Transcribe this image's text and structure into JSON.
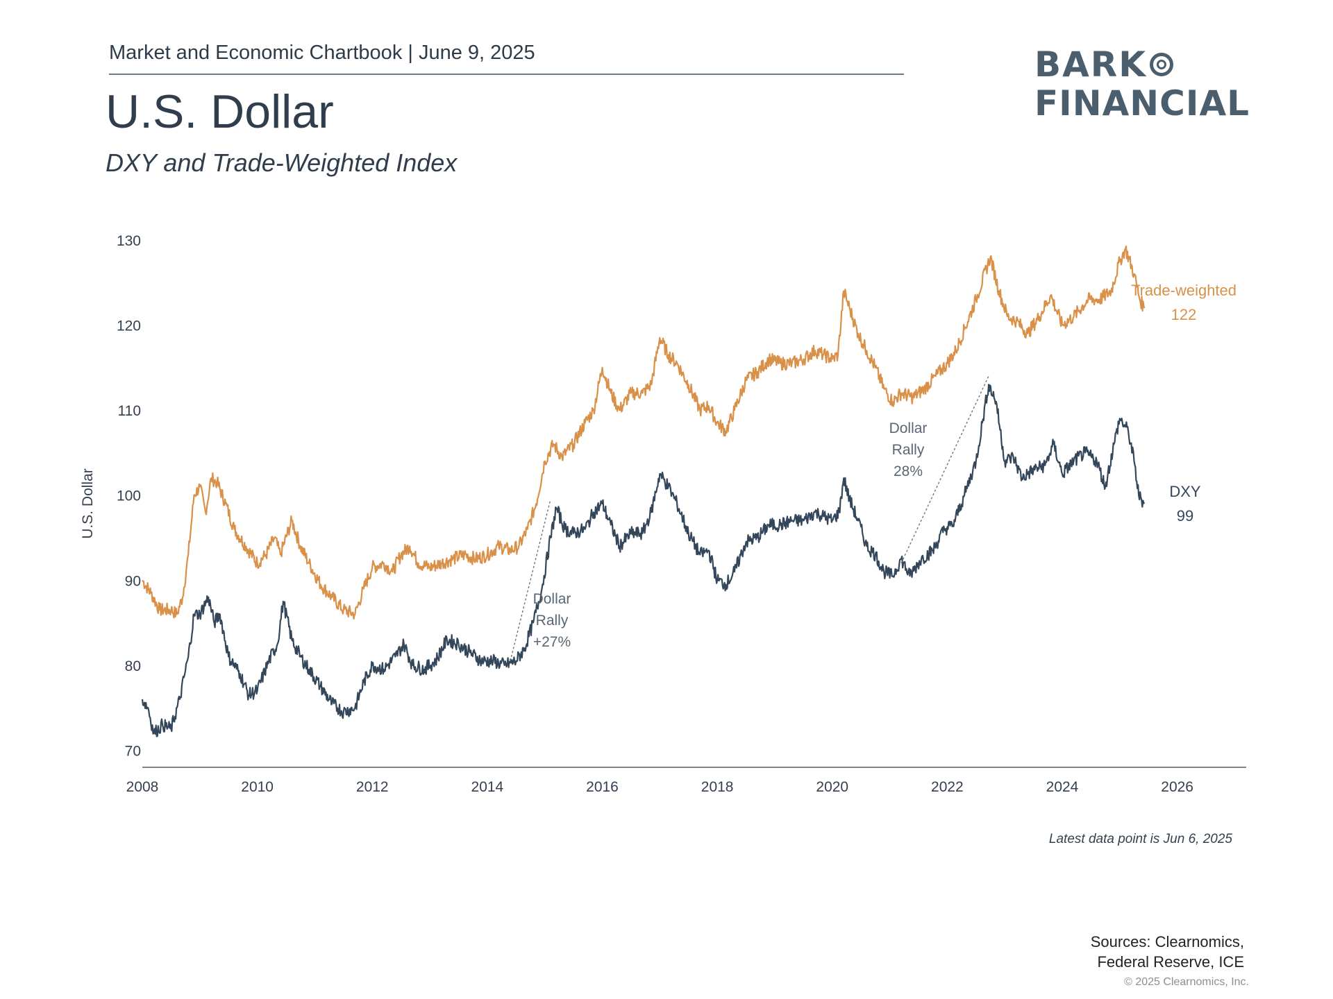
{
  "header": {
    "chartbook_line": "Market and Economic Chartbook | June 9, 2025",
    "title": "U.S. Dollar",
    "subtitle": "DXY and Trade-Weighted Index"
  },
  "logo": {
    "line1": "BARK",
    "line2": "FINANCIAL",
    "color": "#4a5e6e"
  },
  "chart_data": {
    "type": "line",
    "ylabel": "U.S. Dollar",
    "xlabel": "",
    "xlim": [
      2008,
      2027.2
    ],
    "ylim": [
      68,
      130
    ],
    "y_ticks": [
      70,
      80,
      90,
      100,
      110,
      120,
      130
    ],
    "x_ticks": [
      2008,
      2010,
      2012,
      2014,
      2016,
      2018,
      2020,
      2022,
      2024,
      2026
    ],
    "grid": false,
    "series": [
      {
        "name": "Trade-weighted",
        "end_label": "122",
        "color": "#d9914a",
        "points": [
          [
            2008.0,
            90
          ],
          [
            2008.15,
            88.5
          ],
          [
            2008.3,
            86.5
          ],
          [
            2008.5,
            86.5
          ],
          [
            2008.6,
            86
          ],
          [
            2008.7,
            88
          ],
          [
            2008.8,
            93
          ],
          [
            2008.9,
            100
          ],
          [
            2009.0,
            101
          ],
          [
            2009.1,
            98
          ],
          [
            2009.2,
            102
          ],
          [
            2009.3,
            101.5
          ],
          [
            2009.45,
            99
          ],
          [
            2009.6,
            96
          ],
          [
            2009.8,
            94
          ],
          [
            2010.0,
            92
          ],
          [
            2010.15,
            93
          ],
          [
            2010.3,
            95
          ],
          [
            2010.4,
            93
          ],
          [
            2010.6,
            97
          ],
          [
            2010.75,
            94
          ],
          [
            2010.9,
            92
          ],
          [
            2011.1,
            89.5
          ],
          [
            2011.3,
            88
          ],
          [
            2011.5,
            86.5
          ],
          [
            2011.7,
            86
          ],
          [
            2011.85,
            89
          ],
          [
            2012.0,
            91.5
          ],
          [
            2012.2,
            92
          ],
          [
            2012.35,
            91
          ],
          [
            2012.5,
            93
          ],
          [
            2012.65,
            94
          ],
          [
            2012.8,
            92
          ],
          [
            2013.0,
            91.5
          ],
          [
            2013.2,
            92
          ],
          [
            2013.4,
            92.5
          ],
          [
            2013.6,
            93
          ],
          [
            2013.8,
            92.5
          ],
          [
            2014.0,
            93
          ],
          [
            2014.2,
            94
          ],
          [
            2014.4,
            93.5
          ],
          [
            2014.55,
            94
          ],
          [
            2014.7,
            96
          ],
          [
            2014.85,
            99
          ],
          [
            2015.0,
            104
          ],
          [
            2015.15,
            106
          ],
          [
            2015.3,
            104.5
          ],
          [
            2015.5,
            106
          ],
          [
            2015.7,
            108.5
          ],
          [
            2015.85,
            110
          ],
          [
            2016.0,
            115
          ],
          [
            2016.15,
            112
          ],
          [
            2016.3,
            110
          ],
          [
            2016.5,
            112
          ],
          [
            2016.7,
            112
          ],
          [
            2016.85,
            113
          ],
          [
            2017.0,
            118.5
          ],
          [
            2017.15,
            116.5
          ],
          [
            2017.3,
            115.5
          ],
          [
            2017.5,
            113
          ],
          [
            2017.7,
            110
          ],
          [
            2017.85,
            110.5
          ],
          [
            2018.0,
            108.5
          ],
          [
            2018.15,
            107.5
          ],
          [
            2018.3,
            110
          ],
          [
            2018.5,
            113.5
          ],
          [
            2018.7,
            114.5
          ],
          [
            2018.9,
            116
          ],
          [
            2019.1,
            115.5
          ],
          [
            2019.3,
            115.5
          ],
          [
            2019.5,
            116
          ],
          [
            2019.7,
            117
          ],
          [
            2019.85,
            116.5
          ],
          [
            2020.0,
            116
          ],
          [
            2020.1,
            116.5
          ],
          [
            2020.2,
            124
          ],
          [
            2020.3,
            122
          ],
          [
            2020.45,
            119
          ],
          [
            2020.6,
            117
          ],
          [
            2020.75,
            115
          ],
          [
            2020.9,
            112.5
          ],
          [
            2021.05,
            111
          ],
          [
            2021.2,
            112
          ],
          [
            2021.4,
            111.5
          ],
          [
            2021.6,
            112.5
          ],
          [
            2021.8,
            114
          ],
          [
            2022.0,
            115.5
          ],
          [
            2022.15,
            117
          ],
          [
            2022.3,
            119.5
          ],
          [
            2022.5,
            123
          ],
          [
            2022.75,
            128
          ],
          [
            2022.9,
            124
          ],
          [
            2023.05,
            121
          ],
          [
            2023.2,
            120.5
          ],
          [
            2023.4,
            119
          ],
          [
            2023.6,
            121
          ],
          [
            2023.8,
            123.5
          ],
          [
            2024.0,
            120
          ],
          [
            2024.2,
            121
          ],
          [
            2024.45,
            123
          ],
          [
            2024.65,
            123
          ],
          [
            2024.85,
            124
          ],
          [
            2025.0,
            127.5
          ],
          [
            2025.1,
            129
          ],
          [
            2025.25,
            126
          ],
          [
            2025.35,
            123
          ],
          [
            2025.43,
            122
          ]
        ]
      },
      {
        "name": "DXY",
        "end_label": "99",
        "color": "#34475a",
        "points": [
          [
            2008.0,
            76
          ],
          [
            2008.1,
            75
          ],
          [
            2008.2,
            72
          ],
          [
            2008.35,
            73
          ],
          [
            2008.5,
            72.5
          ],
          [
            2008.65,
            76
          ],
          [
            2008.8,
            81
          ],
          [
            2008.9,
            86
          ],
          [
            2009.0,
            86
          ],
          [
            2009.15,
            88
          ],
          [
            2009.25,
            85
          ],
          [
            2009.35,
            86
          ],
          [
            2009.5,
            81
          ],
          [
            2009.7,
            79
          ],
          [
            2009.85,
            76.5
          ],
          [
            2010.0,
            77
          ],
          [
            2010.2,
            80.5
          ],
          [
            2010.35,
            82.5
          ],
          [
            2010.45,
            87.5
          ],
          [
            2010.6,
            83
          ],
          [
            2010.75,
            81
          ],
          [
            2010.9,
            79.5
          ],
          [
            2011.1,
            77.5
          ],
          [
            2011.3,
            75.5
          ],
          [
            2011.5,
            74.5
          ],
          [
            2011.7,
            75
          ],
          [
            2011.85,
            78
          ],
          [
            2012.0,
            80
          ],
          [
            2012.2,
            79.5
          ],
          [
            2012.4,
            81
          ],
          [
            2012.55,
            82.5
          ],
          [
            2012.7,
            80
          ],
          [
            2012.9,
            79.5
          ],
          [
            2013.1,
            80.5
          ],
          [
            2013.3,
            83
          ],
          [
            2013.5,
            82.5
          ],
          [
            2013.7,
            81.5
          ],
          [
            2013.9,
            80.5
          ],
          [
            2014.1,
            80.5
          ],
          [
            2014.3,
            80
          ],
          [
            2014.5,
            80.5
          ],
          [
            2014.65,
            82
          ],
          [
            2014.8,
            85
          ],
          [
            2014.95,
            89
          ],
          [
            2015.1,
            95
          ],
          [
            2015.2,
            98.5
          ],
          [
            2015.35,
            96
          ],
          [
            2015.5,
            95.5
          ],
          [
            2015.7,
            96
          ],
          [
            2015.85,
            98
          ],
          [
            2016.0,
            99
          ],
          [
            2016.15,
            96.5
          ],
          [
            2016.3,
            94
          ],
          [
            2016.5,
            95.5
          ],
          [
            2016.7,
            95.5
          ],
          [
            2016.85,
            98
          ],
          [
            2017.0,
            102.5
          ],
          [
            2017.15,
            101
          ],
          [
            2017.3,
            99
          ],
          [
            2017.5,
            95.5
          ],
          [
            2017.7,
            93
          ],
          [
            2017.85,
            93.5
          ],
          [
            2018.0,
            90
          ],
          [
            2018.15,
            89.5
          ],
          [
            2018.3,
            91
          ],
          [
            2018.5,
            94.5
          ],
          [
            2018.7,
            95
          ],
          [
            2018.9,
            96.5
          ],
          [
            2019.1,
            96.5
          ],
          [
            2019.3,
            97
          ],
          [
            2019.5,
            97
          ],
          [
            2019.7,
            98
          ],
          [
            2019.85,
            97.5
          ],
          [
            2020.0,
            97
          ],
          [
            2020.12,
            98
          ],
          [
            2020.2,
            102
          ],
          [
            2020.3,
            99.5
          ],
          [
            2020.45,
            97
          ],
          [
            2020.6,
            94
          ],
          [
            2020.75,
            93
          ],
          [
            2020.9,
            91
          ],
          [
            2021.05,
            90.5
          ],
          [
            2021.2,
            92.5
          ],
          [
            2021.35,
            90.5
          ],
          [
            2021.55,
            92.5
          ],
          [
            2021.75,
            93.5
          ],
          [
            2021.95,
            96
          ],
          [
            2022.1,
            96.5
          ],
          [
            2022.3,
            100
          ],
          [
            2022.5,
            104
          ],
          [
            2022.72,
            113
          ],
          [
            2022.85,
            111
          ],
          [
            2023.0,
            104
          ],
          [
            2023.15,
            104.5
          ],
          [
            2023.3,
            102
          ],
          [
            2023.5,
            103
          ],
          [
            2023.7,
            103.5
          ],
          [
            2023.85,
            106
          ],
          [
            2024.0,
            102.5
          ],
          [
            2024.2,
            104
          ],
          [
            2024.4,
            105
          ],
          [
            2024.6,
            104
          ],
          [
            2024.75,
            101
          ],
          [
            2024.9,
            106
          ],
          [
            2025.0,
            109
          ],
          [
            2025.15,
            107.5
          ],
          [
            2025.25,
            104
          ],
          [
            2025.33,
            100
          ],
          [
            2025.43,
            99
          ]
        ]
      }
    ],
    "annotations": [
      {
        "lines": [
          "Dollar",
          "Rally",
          "+27%"
        ],
        "from": [
          2014.4,
          80.5
        ],
        "to": [
          2015.1,
          99.5
        ],
        "color": "#5a6673"
      },
      {
        "lines": [
          "Dollar",
          "Rally",
          "28%"
        ],
        "from": [
          2021.2,
          92
        ],
        "to": [
          2022.72,
          114
        ],
        "color": "#5a6673"
      }
    ]
  },
  "footer": {
    "note": "Latest data point is Jun 6, 2025",
    "sources_line1": "Sources: Clearnomics,",
    "sources_line2": "Federal Reserve, ICE",
    "copyright": "© 2025 Clearnomics, Inc."
  }
}
